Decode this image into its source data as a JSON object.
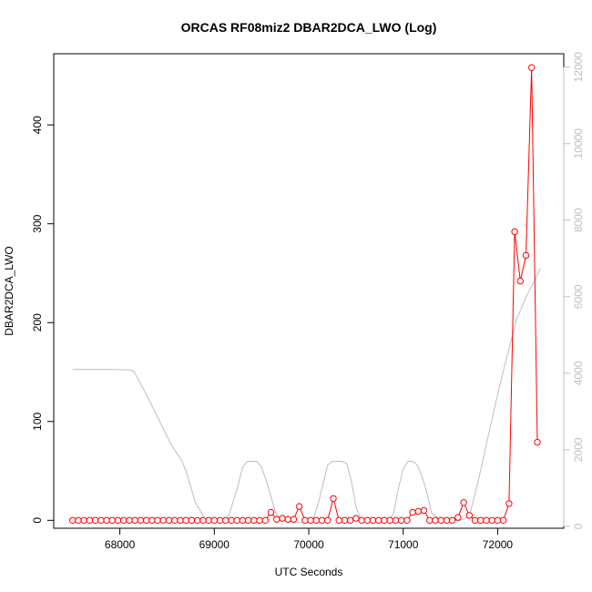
{
  "chart_data": {
    "type": "line",
    "title": "ORCAS RF08miz2 DBAR2DCA_LWO (Log)",
    "xlabel": "UTC Seconds",
    "ylabel": "DBAR2DCA_LWO",
    "xlim": [
      67300,
      72700
    ],
    "ylim": [
      -8,
      472
    ],
    "y2lim": [
      -50,
      12350
    ],
    "x_ticks": [
      68000,
      69000,
      70000,
      71000,
      72000
    ],
    "y_ticks": [
      0,
      100,
      200,
      300,
      400
    ],
    "y2_ticks": [
      0,
      2000,
      4000,
      6000,
      8000,
      10000,
      12000
    ],
    "grid": false,
    "legend": "none",
    "colors": {
      "primary": "#ff0000",
      "secondary": "#bebebe",
      "axis": "#000000"
    },
    "series": [
      {
        "axis": "left",
        "marker": "open-circle",
        "color": "#ff0000",
        "x": [
          67500,
          67560,
          67620,
          67680,
          67740,
          67800,
          67860,
          67920,
          67980,
          68040,
          68100,
          68160,
          68220,
          68280,
          68340,
          68400,
          68460,
          68520,
          68580,
          68640,
          68700,
          68760,
          68820,
          68880,
          68940,
          69000,
          69060,
          69120,
          69180,
          69240,
          69300,
          69360,
          69420,
          69480,
          69540,
          69600,
          69660,
          69720,
          69780,
          69840,
          69900,
          69960,
          70020,
          70080,
          70140,
          70200,
          70260,
          70320,
          70380,
          70440,
          70500,
          70560,
          70620,
          70680,
          70740,
          70800,
          70860,
          70920,
          70980,
          71040,
          71100,
          71160,
          71220,
          71280,
          71340,
          71400,
          71460,
          71520,
          71580,
          71640,
          71700,
          71760,
          71820,
          71880,
          71940,
          72000,
          72060,
          72120,
          72180,
          72240,
          72300,
          72360,
          72420
        ],
        "y": [
          0,
          0,
          0,
          0,
          0,
          0,
          0,
          0,
          0,
          0,
          0,
          0,
          0,
          0,
          0,
          0,
          0,
          0,
          0,
          0,
          0,
          0,
          0,
          0,
          0,
          0,
          0,
          0,
          0,
          0,
          0,
          0,
          0,
          0,
          0,
          8,
          1,
          2,
          1,
          1,
          14,
          0,
          0,
          0,
          0,
          0,
          22,
          0,
          0,
          0,
          2,
          0,
          0,
          0,
          0,
          0,
          0,
          0,
          0,
          0,
          8,
          9,
          10,
          0,
          0,
          0,
          0,
          0,
          3,
          18,
          5,
          0,
          0,
          0,
          0,
          0,
          0,
          17,
          292,
          242,
          268,
          458,
          79
        ]
      },
      {
        "axis": "right",
        "marker": "none",
        "color": "#bebebe",
        "x": [
          67500,
          67700,
          67900,
          68100,
          68150,
          68300,
          68450,
          68550,
          68650,
          68700,
          68800,
          68900,
          69000,
          69100,
          69150,
          69250,
          69300,
          69350,
          69400,
          69450,
          69500,
          69550,
          69650,
          69700,
          69800,
          69900,
          70000,
          70050,
          70100,
          70150,
          70200,
          70250,
          70300,
          70350,
          70400,
          70450,
          70500,
          70550,
          70600,
          70650,
          70750,
          70850,
          70900,
          70950,
          71000,
          71050,
          71100,
          71150,
          71200,
          71250,
          71300,
          71400,
          71500,
          71550,
          71600,
          71700,
          71800,
          71900,
          72000,
          72100,
          72200,
          72300,
          72400,
          72450
        ],
        "y": [
          4100,
          4100,
          4100,
          4090,
          4050,
          3350,
          2600,
          2100,
          1750,
          1450,
          620,
          200,
          200,
          200,
          250,
          1050,
          1550,
          1700,
          1700,
          1700,
          1550,
          1200,
          350,
          180,
          120,
          100,
          100,
          200,
          600,
          1100,
          1600,
          1700,
          1700,
          1700,
          1650,
          1200,
          500,
          200,
          120,
          120,
          120,
          150,
          350,
          1000,
          1500,
          1700,
          1700,
          1600,
          1300,
          900,
          350,
          150,
          150,
          150,
          150,
          250,
          1250,
          2350,
          3450,
          4450,
          5400,
          6000,
          6450,
          6750
        ]
      }
    ]
  }
}
